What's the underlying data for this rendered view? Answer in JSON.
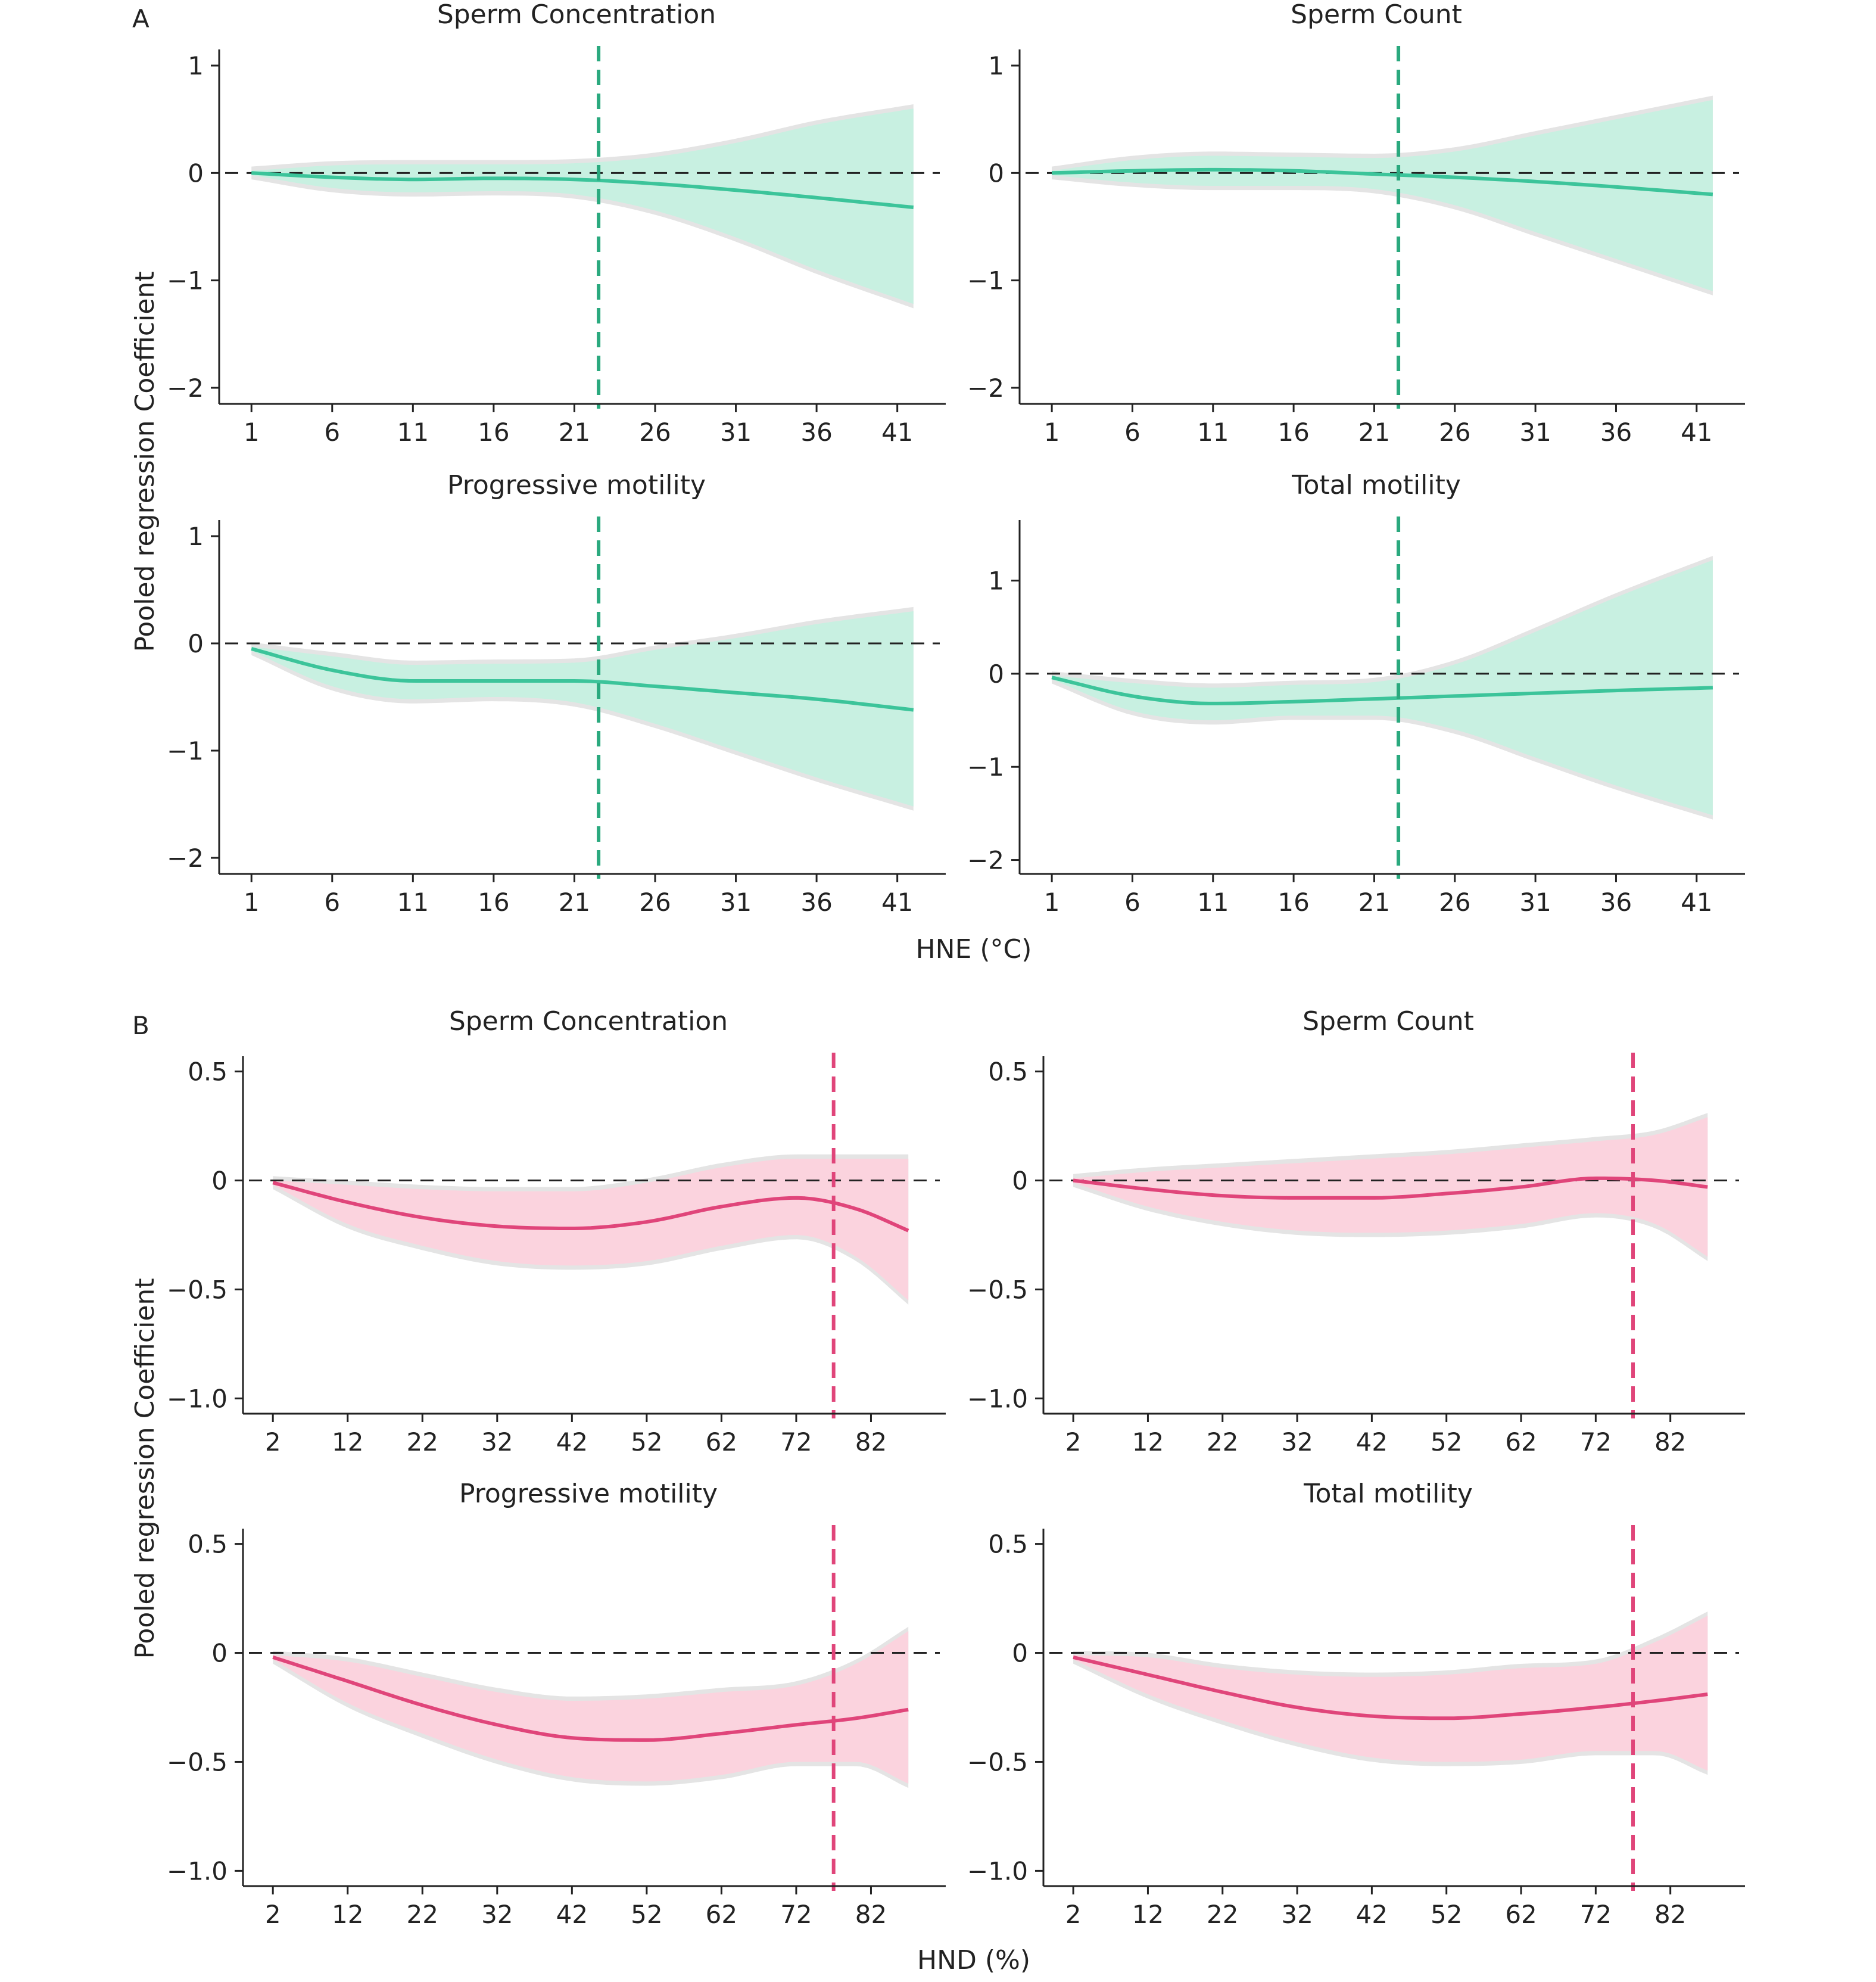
{
  "figure": {
    "panel_letters": [
      "A",
      "B"
    ],
    "y_axis_title": "Pooled regression Coefficient",
    "colors": {
      "green_line": "#3cc49a",
      "green_band": "#c8f0e1",
      "green_vline": "#2aa97e",
      "pink_line": "#e0457a",
      "pink_band": "#fbd3de",
      "pink_vline": "#e0457a",
      "gray_band": "#e4e4e4",
      "zero_line": "#222222"
    }
  },
  "chart_data": [
    {
      "id": "A1",
      "section": "A",
      "type": "line",
      "title": "Sperm Concentration",
      "xlabel": "",
      "ylabel": "Pooled regression Coefficient",
      "x_ticks": [
        1,
        6,
        11,
        16,
        21,
        26,
        31,
        36,
        41
      ],
      "xlim": [
        -1,
        44
      ],
      "y_ticks": [
        1,
        0,
        -1,
        -2
      ],
      "ylim": [
        -2.15,
        1.15
      ],
      "threshold_x": 22.5,
      "color": "green",
      "x": [
        1,
        6,
        11,
        16,
        21,
        26,
        31,
        36,
        42
      ],
      "estimate": [
        0,
        -0.04,
        -0.06,
        -0.05,
        -0.06,
        -0.1,
        -0.16,
        -0.23,
        -0.32
      ],
      "ci_lower": [
        -0.02,
        -0.14,
        -0.18,
        -0.17,
        -0.2,
        -0.35,
        -0.6,
        -0.9,
        -1.22
      ],
      "ci_upper": [
        0.02,
        0.07,
        0.08,
        0.08,
        0.09,
        0.15,
        0.28,
        0.45,
        0.6
      ]
    },
    {
      "id": "A2",
      "section": "A",
      "type": "line",
      "title": "Sperm Count",
      "xlabel": "",
      "ylabel": "",
      "x_ticks": [
        1,
        6,
        11,
        16,
        21,
        26,
        31,
        36,
        41
      ],
      "xlim": [
        -1,
        44
      ],
      "y_ticks": [
        1,
        0,
        -1,
        -2
      ],
      "ylim": [
        -2.15,
        1.15
      ],
      "threshold_x": 22.5,
      "color": "green",
      "x": [
        1,
        6,
        11,
        16,
        21,
        26,
        31,
        36,
        42
      ],
      "estimate": [
        0,
        0.02,
        0.03,
        0.02,
        -0.01,
        -0.04,
        -0.08,
        -0.13,
        -0.2
      ],
      "ci_lower": [
        -0.02,
        -0.09,
        -0.12,
        -0.12,
        -0.15,
        -0.3,
        -0.55,
        -0.8,
        -1.1
      ],
      "ci_upper": [
        0.02,
        0.12,
        0.16,
        0.15,
        0.14,
        0.2,
        0.35,
        0.5,
        0.68
      ]
    },
    {
      "id": "A3",
      "section": "A",
      "type": "line",
      "title": "Progressive motility",
      "xlabel": "",
      "ylabel": "",
      "x_ticks": [
        1,
        6,
        11,
        16,
        21,
        26,
        31,
        36,
        41
      ],
      "xlim": [
        -1,
        44
      ],
      "y_ticks": [
        1,
        0,
        -1,
        -2
      ],
      "ylim": [
        -2.15,
        1.15
      ],
      "threshold_x": 22.5,
      "color": "green",
      "x": [
        1,
        6,
        11,
        16,
        21,
        26,
        31,
        36,
        42
      ],
      "estimate": [
        -0.05,
        -0.25,
        -0.35,
        -0.35,
        -0.35,
        -0.4,
        -0.46,
        -0.52,
        -0.62
      ],
      "ci_lower": [
        -0.07,
        -0.4,
        -0.52,
        -0.5,
        -0.55,
        -0.75,
        -1.0,
        -1.25,
        -1.52
      ],
      "ci_upper": [
        -0.03,
        -0.12,
        -0.2,
        -0.19,
        -0.18,
        -0.06,
        0.05,
        0.18,
        0.3
      ]
    },
    {
      "id": "A4",
      "section": "A",
      "type": "line",
      "title": "Total motility",
      "xlabel": "HNE (°C)",
      "ylabel": "",
      "x_ticks": [
        1,
        6,
        11,
        16,
        21,
        26,
        31,
        36,
        41
      ],
      "xlim": [
        -1,
        44
      ],
      "y_ticks": [
        1,
        0,
        -1,
        -2
      ],
      "ylim": [
        -2.15,
        1.65
      ],
      "threshold_x": 22.5,
      "color": "green",
      "x": [
        1,
        6,
        11,
        16,
        21,
        26,
        31,
        36,
        42
      ],
      "estimate": [
        -0.04,
        -0.24,
        -0.32,
        -0.3,
        -0.27,
        -0.24,
        -0.21,
        -0.18,
        -0.15
      ],
      "ci_lower": [
        -0.06,
        -0.4,
        -0.5,
        -0.45,
        -0.45,
        -0.6,
        -0.9,
        -1.2,
        -1.52
      ],
      "ci_upper": [
        -0.02,
        -0.1,
        -0.15,
        -0.12,
        -0.09,
        0.1,
        0.45,
        0.82,
        1.22
      ]
    },
    {
      "id": "B1",
      "section": "B",
      "type": "line",
      "title": "Sperm Concentration",
      "xlabel": "",
      "ylabel": "Pooled regression Coefficient",
      "x_ticks": [
        2,
        12,
        22,
        32,
        42,
        52,
        62,
        72,
        82
      ],
      "xlim": [
        -2,
        92
      ],
      "y_ticks": [
        0.5,
        0,
        -0.5,
        -1.0
      ],
      "y_tick_labels": [
        "0.5",
        "0",
        "−0.5",
        "−1.0"
      ],
      "ylim": [
        -1.07,
        0.57
      ],
      "threshold_x": 77,
      "color": "pink",
      "x": [
        2,
        12,
        22,
        32,
        42,
        52,
        62,
        72,
        80,
        87
      ],
      "estimate": [
        -0.01,
        -0.1,
        -0.17,
        -0.21,
        -0.22,
        -0.19,
        -0.12,
        -0.08,
        -0.13,
        -0.23
      ],
      "ci_lower": [
        -0.02,
        -0.2,
        -0.3,
        -0.37,
        -0.39,
        -0.37,
        -0.3,
        -0.25,
        -0.35,
        -0.55
      ],
      "ci_upper": [
        0.0,
        -0.02,
        -0.04,
        -0.05,
        -0.05,
        -0.01,
        0.06,
        0.1,
        0.1,
        0.1
      ]
    },
    {
      "id": "B2",
      "section": "B",
      "type": "line",
      "title": "Sperm Count",
      "xlabel": "",
      "ylabel": "",
      "x_ticks": [
        2,
        12,
        22,
        32,
        42,
        52,
        62,
        72,
        82
      ],
      "xlim": [
        -2,
        92
      ],
      "y_ticks": [
        0.5,
        0,
        -0.5,
        -1.0
      ],
      "y_tick_labels": [
        "0.5",
        "0",
        "−0.5",
        "−1.0"
      ],
      "ylim": [
        -1.07,
        0.57
      ],
      "threshold_x": 77,
      "color": "pink",
      "x": [
        2,
        12,
        22,
        32,
        42,
        52,
        62,
        72,
        80,
        87
      ],
      "estimate": [
        0.0,
        -0.04,
        -0.07,
        -0.08,
        -0.08,
        -0.06,
        -0.03,
        0.01,
        0.0,
        -0.03
      ],
      "ci_lower": [
        -0.01,
        -0.12,
        -0.19,
        -0.23,
        -0.24,
        -0.23,
        -0.2,
        -0.15,
        -0.2,
        -0.35
      ],
      "ci_upper": [
        0.01,
        0.04,
        0.06,
        0.08,
        0.1,
        0.12,
        0.15,
        0.18,
        0.21,
        0.29
      ]
    },
    {
      "id": "B3",
      "section": "B",
      "type": "line",
      "title": "Progressive motility",
      "xlabel": "",
      "ylabel": "",
      "x_ticks": [
        2,
        12,
        22,
        32,
        42,
        52,
        62,
        72,
        82
      ],
      "xlim": [
        -2,
        92
      ],
      "y_ticks": [
        0.5,
        0,
        -0.5,
        -1.0
      ],
      "y_tick_labels": [
        "0.5",
        "0",
        "−0.5",
        "−1.0"
      ],
      "ylim": [
        -1.07,
        0.57
      ],
      "threshold_x": 77,
      "color": "pink",
      "x": [
        2,
        12,
        22,
        32,
        42,
        52,
        62,
        72,
        80,
        87
      ],
      "estimate": [
        -0.02,
        -0.13,
        -0.24,
        -0.33,
        -0.39,
        -0.4,
        -0.37,
        -0.33,
        -0.3,
        -0.26
      ],
      "ci_lower": [
        -0.03,
        -0.23,
        -0.37,
        -0.49,
        -0.57,
        -0.59,
        -0.56,
        -0.5,
        -0.5,
        -0.6
      ],
      "ci_upper": [
        -0.01,
        -0.04,
        -0.11,
        -0.18,
        -0.22,
        -0.21,
        -0.18,
        -0.15,
        -0.05,
        0.1
      ]
    },
    {
      "id": "B4",
      "section": "B",
      "type": "line",
      "title": "Total motility",
      "xlabel": "HND (%)",
      "ylabel": "",
      "x_ticks": [
        2,
        12,
        22,
        32,
        42,
        52,
        62,
        72,
        82
      ],
      "xlim": [
        -2,
        92
      ],
      "y_ticks": [
        0.5,
        0,
        -0.5,
        -1.0
      ],
      "y_tick_labels": [
        "0.5",
        "0",
        "−0.5",
        "−1.0"
      ],
      "ylim": [
        -1.07,
        0.57
      ],
      "threshold_x": 77,
      "color": "pink",
      "x": [
        2,
        12,
        22,
        32,
        42,
        52,
        62,
        72,
        80,
        87
      ],
      "estimate": [
        -0.02,
        -0.1,
        -0.18,
        -0.25,
        -0.29,
        -0.3,
        -0.28,
        -0.25,
        -0.22,
        -0.19
      ],
      "ci_lower": [
        -0.03,
        -0.19,
        -0.31,
        -0.41,
        -0.48,
        -0.5,
        -0.49,
        -0.45,
        -0.45,
        -0.54
      ],
      "ci_upper": [
        -0.01,
        -0.02,
        -0.07,
        -0.1,
        -0.11,
        -0.1,
        -0.07,
        -0.05,
        0.05,
        0.17
      ]
    }
  ]
}
